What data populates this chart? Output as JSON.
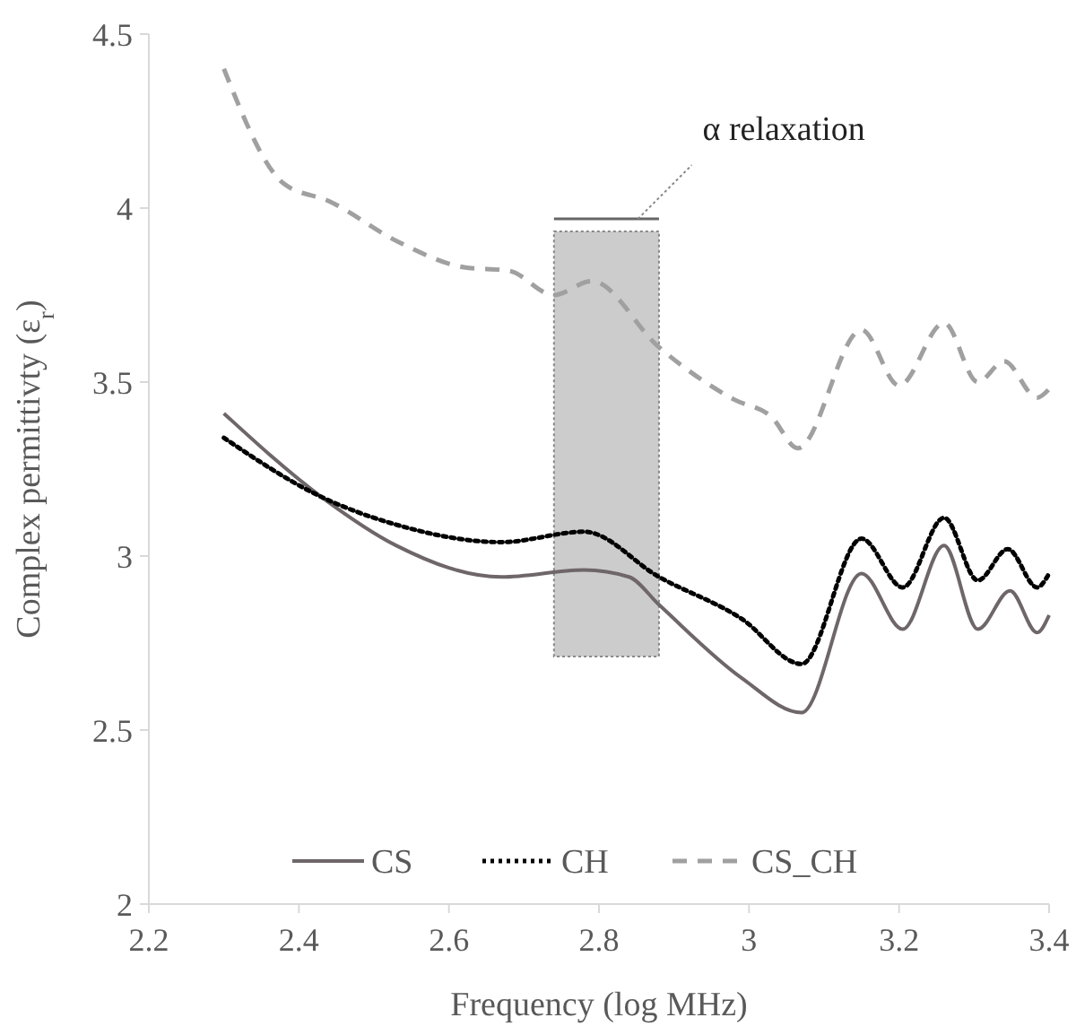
{
  "chart_data": {
    "type": "line",
    "xlabel": "Frequency (log MHz)",
    "ylabel": "Complex permittivty (ε$_{r}$)",
    "xlim": [
      2.2,
      3.4
    ],
    "ylim": [
      2,
      4.5
    ],
    "xticks": [
      2.2,
      2.4,
      2.6,
      2.8,
      3,
      3.2,
      3.4
    ],
    "yticks": [
      2,
      2.5,
      3,
      3.5,
      4,
      4.5
    ],
    "grid": false,
    "legend": "bottom",
    "marker": "none",
    "series": [
      {
        "name": "CS",
        "color": "#6e6668",
        "line_style": "solid",
        "x": [
          2.3,
          2.43,
          2.53,
          2.67,
          2.78,
          2.84,
          2.88,
          2.99,
          3.07,
          3.15,
          3.205,
          3.26,
          3.305,
          3.348,
          3.384,
          3.4
        ],
        "values": [
          3.41,
          3.17,
          3.03,
          2.94,
          2.96,
          2.94,
          2.86,
          2.65,
          2.55,
          2.95,
          2.79,
          3.03,
          2.79,
          2.9,
          2.78,
          2.83
        ]
      },
      {
        "name": "CH",
        "color": "#000000",
        "line_style": "dotted",
        "x": [
          2.3,
          2.43,
          2.53,
          2.67,
          2.78,
          2.88,
          2.99,
          3.07,
          3.15,
          3.205,
          3.26,
          3.305,
          3.345,
          3.384,
          3.4
        ],
        "values": [
          3.34,
          3.17,
          3.09,
          3.04,
          3.07,
          2.94,
          2.82,
          2.69,
          3.05,
          2.91,
          3.11,
          2.93,
          3.02,
          2.91,
          2.95
        ]
      },
      {
        "name": "CS_CH",
        "color": "#a0a0a0",
        "line_style": "dashed",
        "x": [
          2.3,
          2.38,
          2.44,
          2.535,
          2.62,
          2.68,
          2.74,
          2.79,
          2.88,
          2.98,
          3.03,
          3.065,
          3.15,
          3.2,
          3.26,
          3.305,
          3.34,
          3.384,
          3.4
        ],
        "values": [
          4.4,
          4.07,
          4.02,
          3.9,
          3.83,
          3.82,
          3.75,
          3.79,
          3.6,
          3.45,
          3.4,
          3.31,
          3.65,
          3.49,
          3.67,
          3.5,
          3.56,
          3.455,
          3.48
        ]
      }
    ],
    "bands": [
      {
        "axis": "x",
        "from": 2.74,
        "to": 2.88,
        "color": "#cccccc"
      }
    ],
    "annotations": [
      "α relaxation"
    ]
  }
}
